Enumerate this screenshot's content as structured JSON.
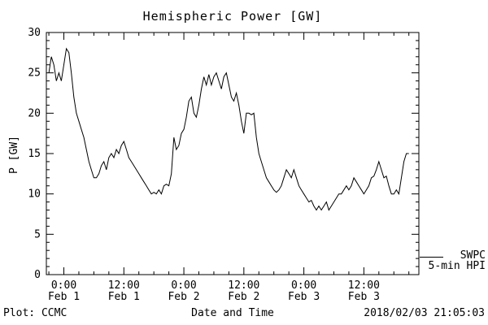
{
  "chart_data": {
    "type": "line",
    "title": "Hemispheric Power [GW]",
    "xlabel": "Date and Time",
    "ylabel": "P [GW]",
    "ylim": [
      0,
      30
    ],
    "y_ticks": [
      0,
      5,
      10,
      15,
      20,
      25,
      30
    ],
    "x_range_hours": [
      -3.5,
      71
    ],
    "x_ticks": [
      {
        "hour": 0,
        "time": "0:00",
        "date": "Feb 1"
      },
      {
        "hour": 12,
        "time": "12:00",
        "date": "Feb 1"
      },
      {
        "hour": 24,
        "time": "0:00",
        "date": "Feb 2"
      },
      {
        "hour": 36,
        "time": "12:00",
        "date": "Feb 2"
      },
      {
        "hour": 48,
        "time": "0:00",
        "date": "Feb 3"
      },
      {
        "hour": 60,
        "time": "12:00",
        "date": "Feb 3"
      }
    ],
    "grid": false,
    "legend_position": "right-outside",
    "line_color": "#000000",
    "series": [
      {
        "name": "SWPC 5-min HPI",
        "x_start_hour": -3,
        "x_step_hours": 0.5,
        "values": [
          25,
          27,
          26,
          24,
          25,
          24,
          26,
          28,
          27.5,
          25,
          22,
          20,
          19,
          18,
          17,
          15.5,
          14,
          13,
          12,
          12,
          12.5,
          13.5,
          14,
          13,
          14.5,
          15,
          14.5,
          15.5,
          15,
          16,
          16.5,
          15.5,
          14.5,
          14,
          13.5,
          13,
          12.5,
          12,
          11.5,
          11,
          10.5,
          10,
          10.2,
          10,
          10.5,
          10,
          11,
          11.2,
          11,
          12.5,
          17,
          15.5,
          16,
          17.5,
          18,
          19.5,
          21.5,
          22,
          20,
          19.5,
          21,
          23,
          24.5,
          23.5,
          24.8,
          23.5,
          24.5,
          25,
          24,
          23,
          24.5,
          25,
          23.5,
          22,
          21.5,
          22.5,
          21,
          19,
          17.5,
          20,
          20,
          19.8,
          20,
          17,
          15,
          14,
          13,
          12,
          11.5,
          11,
          10.5,
          10.2,
          10.5,
          11,
          12,
          13,
          12.5,
          12,
          13,
          12,
          11,
          10.5,
          10,
          9.5,
          9,
          9.2,
          8.5,
          8,
          8.5,
          8,
          8.5,
          9,
          8,
          8.5,
          9,
          9.5,
          10,
          10,
          10.5,
          11,
          10.5,
          11,
          12,
          11.5,
          11,
          10.5,
          10,
          10.5,
          11,
          12,
          12.2,
          13,
          14,
          13,
          12,
          12.2,
          11,
          10,
          10,
          10.5,
          10,
          12,
          14,
          15,
          15
        ]
      }
    ]
  },
  "legend": {
    "source": "SWPC",
    "series": "5-min HPI"
  },
  "footer": {
    "credit": "Plot: CCMC",
    "timestamp": "2018/02/03 21:05:03"
  }
}
